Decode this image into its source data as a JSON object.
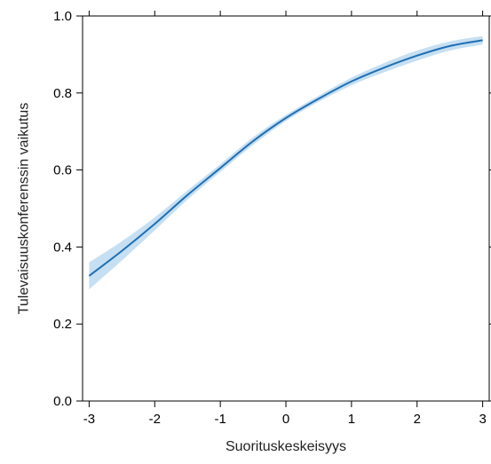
{
  "chart_data": {
    "type": "line",
    "title": "",
    "xlabel": "Suorituskeskeisyys",
    "ylabel": "Tulevaisuuskonferenssin vaikutus",
    "xlim": [
      -3.1,
      3.1
    ],
    "ylim": [
      0.0,
      1.0
    ],
    "x_ticks": [
      -3,
      -2,
      -1,
      0,
      1,
      2,
      3
    ],
    "x_tick_labels": [
      "-3",
      "-2",
      "-1",
      "0",
      "1",
      "2",
      "3"
    ],
    "y_ticks": [
      0.0,
      0.2,
      0.4,
      0.6,
      0.8,
      1.0
    ],
    "y_tick_labels": [
      "0.0",
      "0.2",
      "0.4",
      "0.6",
      "0.8",
      "1.0"
    ],
    "grid": false,
    "series": [
      {
        "x": [
          -3.0,
          -2.5,
          -2.0,
          -1.5,
          -1.0,
          -0.5,
          0.0,
          0.5,
          1.0,
          1.5,
          2.0,
          2.5,
          3.0
        ],
        "values": [
          0.325,
          0.39,
          0.46,
          0.535,
          0.605,
          0.675,
          0.735,
          0.785,
          0.83,
          0.866,
          0.897,
          0.922,
          0.937
        ],
        "lower": [
          0.29,
          0.365,
          0.443,
          0.523,
          0.595,
          0.665,
          0.727,
          0.777,
          0.82,
          0.854,
          0.884,
          0.91,
          0.926
        ],
        "upper": [
          0.36,
          0.415,
          0.477,
          0.547,
          0.615,
          0.685,
          0.743,
          0.793,
          0.84,
          0.878,
          0.91,
          0.934,
          0.948
        ],
        "color": "#1f6fb4",
        "band_color": "#c6dff2"
      }
    ]
  }
}
